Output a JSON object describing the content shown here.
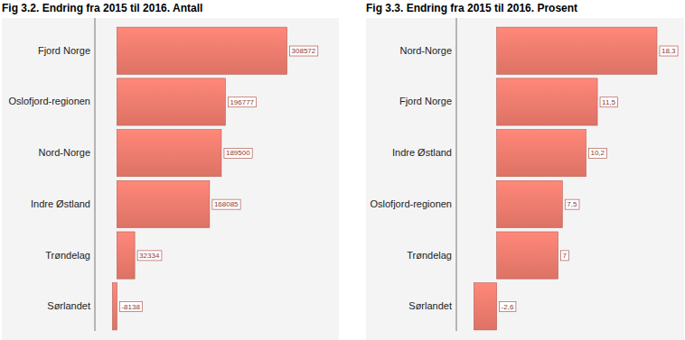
{
  "chart_data": [
    {
      "type": "bar",
      "title": "Fig 3.2. Endring fra 2015 til 2016. Antall",
      "orientation": "horizontal",
      "categories": [
        "Fjord Norge",
        "Oslofjord-regionen",
        "Nord-Norge",
        "Indre Østland",
        "Trøndelag",
        "Sørlandet"
      ],
      "values": [
        308572,
        196777,
        189500,
        168085,
        32334,
        -8138
      ],
      "color": "#e8786b",
      "xlim": [
        -40000,
        370000
      ],
      "data_labels": true,
      "tick_labels": false,
      "grid": false
    },
    {
      "type": "bar",
      "title": "Fig 3.3. Endring fra 2015 til 2016. Prosent",
      "orientation": "horizontal",
      "categories": [
        "Nord-Norge",
        "Fjord Norge",
        "Indre Østland",
        "Oslofjord-regionen",
        "Trøndelag",
        "Sørlandet"
      ],
      "values": [
        18.3,
        11.5,
        10.2,
        7.5,
        7,
        -2.6
      ],
      "value_labels": [
        "18,3",
        "11,5",
        "10,2",
        "7,5",
        "7",
        "-2,6"
      ],
      "color": "#e8786b",
      "xlim": [
        -4.6,
        21.4
      ],
      "data_labels": true,
      "tick_labels": false,
      "grid": false
    }
  ]
}
